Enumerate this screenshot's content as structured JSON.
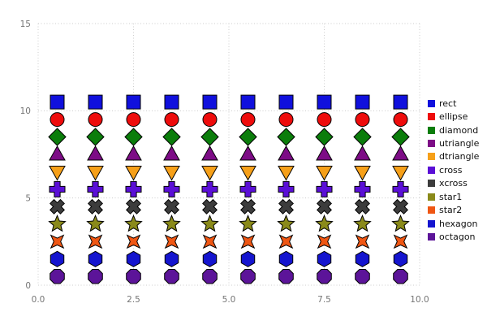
{
  "chart_data": {
    "type": "scatter",
    "title": "",
    "xlabel": "",
    "ylabel": "",
    "xlim": [
      0,
      10
    ],
    "ylim": [
      0,
      15
    ],
    "grid": true,
    "legend_position": "right",
    "x": [
      0.5,
      1.5,
      2.5,
      3.5,
      4.5,
      5.5,
      6.5,
      7.5,
      8.5,
      9.5
    ],
    "xticks": [
      {
        "value": 0,
        "label": "0.0"
      },
      {
        "value": 2.5,
        "label": "2.5"
      },
      {
        "value": 5,
        "label": "5.0"
      },
      {
        "value": 7.5,
        "label": "7.5"
      },
      {
        "value": 10,
        "label": "10.0"
      }
    ],
    "yticks": [
      {
        "value": 0,
        "label": "0"
      },
      {
        "value": 5,
        "label": "5"
      },
      {
        "value": 10,
        "label": "10"
      },
      {
        "value": 15,
        "label": "15"
      }
    ],
    "series": [
      {
        "name": "rect",
        "shape": "rect",
        "color": "#1010dd",
        "y": 10.5
      },
      {
        "name": "ellipse",
        "shape": "ellipse",
        "color": "#ee0c0c",
        "y": 9.5
      },
      {
        "name": "diamond",
        "shape": "diamond",
        "color": "#0b7d0b",
        "y": 8.5
      },
      {
        "name": "utriangle",
        "shape": "utriangle",
        "color": "#7d0c86",
        "y": 7.5
      },
      {
        "name": "dtriangle",
        "shape": "dtriangle",
        "color": "#f6a019",
        "y": 6.5
      },
      {
        "name": "cross",
        "shape": "cross",
        "color": "#5a0fd6",
        "y": 5.5
      },
      {
        "name": "xcross",
        "shape": "xcross",
        "color": "#3c3c3c",
        "y": 4.5
      },
      {
        "name": "star1",
        "shape": "star1",
        "color": "#8a8a1a",
        "y": 3.5
      },
      {
        "name": "star2",
        "shape": "star2",
        "color": "#ef5613",
        "y": 2.5
      },
      {
        "name": "hexagon",
        "shape": "hexagon",
        "color": "#1515cf",
        "y": 1.5
      },
      {
        "name": "octagon",
        "shape": "octagon",
        "color": "#5c1499",
        "y": 0.5
      }
    ],
    "marker_outline": "#000000",
    "grid_color": "#cccccc",
    "tick_label_color": "#757575"
  }
}
